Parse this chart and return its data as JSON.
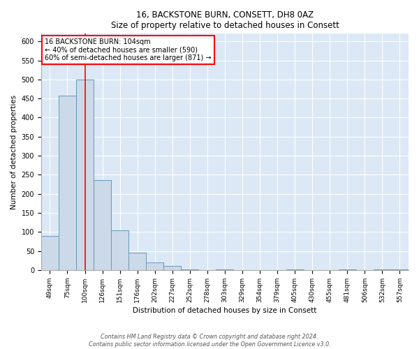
{
  "title": "16, BACKSTONE BURN, CONSETT, DH8 0AZ",
  "subtitle": "Size of property relative to detached houses in Consett",
  "xlabel": "Distribution of detached houses by size in Consett",
  "ylabel": "Number of detached properties",
  "bar_labels": [
    "49sqm",
    "75sqm",
    "100sqm",
    "126sqm",
    "151sqm",
    "176sqm",
    "202sqm",
    "227sqm",
    "252sqm",
    "278sqm",
    "303sqm",
    "329sqm",
    "354sqm",
    "379sqm",
    "405sqm",
    "430sqm",
    "455sqm",
    "481sqm",
    "506sqm",
    "532sqm",
    "557sqm"
  ],
  "bar_values": [
    90,
    457,
    500,
    236,
    105,
    45,
    20,
    10,
    2,
    0,
    1,
    0,
    0,
    0,
    1,
    0,
    0,
    1,
    0,
    1,
    1
  ],
  "bar_color": "#ccd9e8",
  "bar_edge_color": "#6699bb",
  "property_line_x": 2,
  "property_line_color": "red",
  "annotation_title": "16 BACKSTONE BURN: 104sqm",
  "annotation_line1": "← 40% of detached houses are smaller (590)",
  "annotation_line2": "60% of semi-detached houses are larger (871) →",
  "annotation_box_color": "white",
  "annotation_box_edge": "red",
  "ylim": [
    0,
    620
  ],
  "yticks": [
    0,
    50,
    100,
    150,
    200,
    250,
    300,
    350,
    400,
    450,
    500,
    550,
    600
  ],
  "footer1": "Contains HM Land Registry data © Crown copyright and database right 2024.",
  "footer2": "Contains public sector information licensed under the Open Government Licence v3.0.",
  "plot_bg_color": "#dce8f5",
  "grid_color": "white"
}
